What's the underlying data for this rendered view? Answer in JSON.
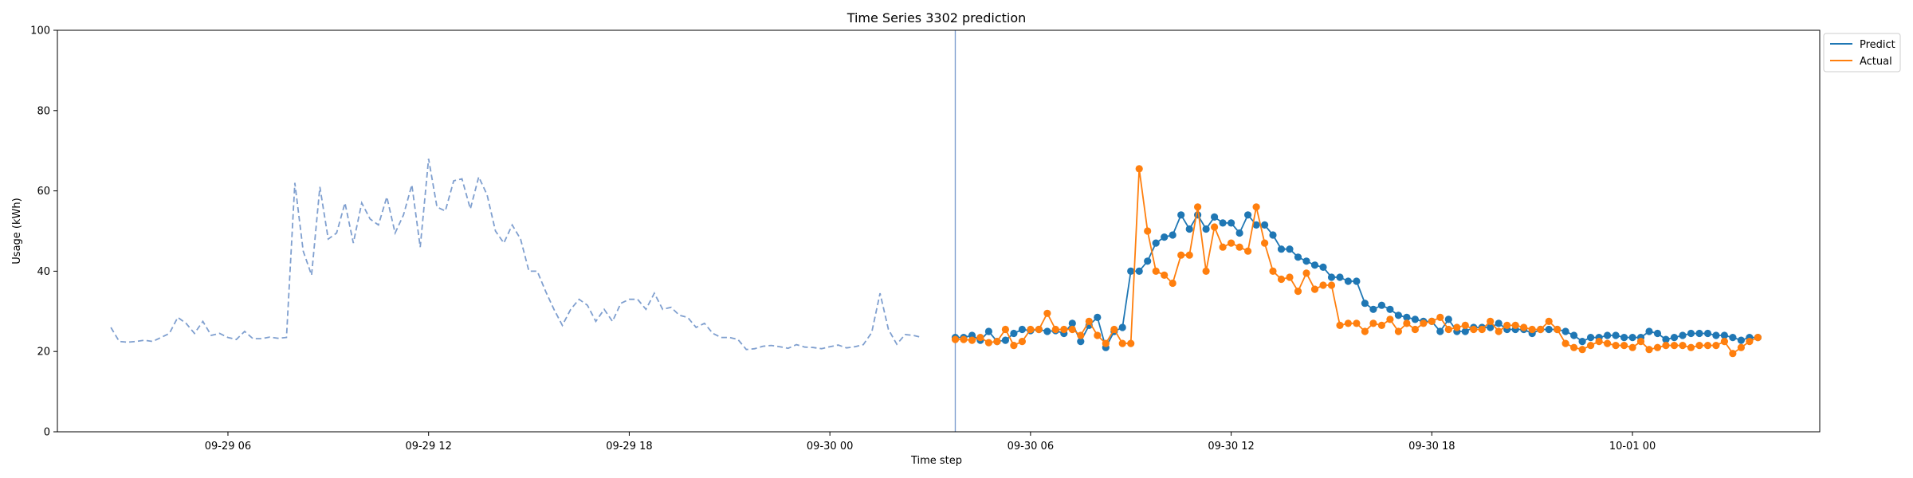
{
  "chart_data": {
    "type": "line",
    "title": "Time Series 3302 prediction",
    "xlabel": "Time step",
    "ylabel": "Usage (kWh)",
    "ylim": [
      0,
      100
    ],
    "yticks": [
      0,
      20,
      40,
      60,
      80,
      100
    ],
    "xlim": [
      "09-29 00:54",
      "10-01 05:36"
    ],
    "xticks": [
      {
        "label": "09-29 06",
        "value": "09-29 06:00"
      },
      {
        "label": "09-29 12",
        "value": "09-29 12:00"
      },
      {
        "label": "09-29 18",
        "value": "09-29 18:00"
      },
      {
        "label": "09-30 00",
        "value": "09-30 00:00"
      },
      {
        "label": "09-30 06",
        "value": "09-30 06:00"
      },
      {
        "label": "09-30 12",
        "value": "09-30 12:00"
      },
      {
        "label": "09-30 18",
        "value": "09-30 18:00"
      },
      {
        "label": "10-01 00",
        "value": "10-01 00:00"
      }
    ],
    "grid": false,
    "legend_position": "upper-right-outside",
    "forecast_start": "09-30 03:45",
    "series": [
      {
        "role": "history",
        "color": "#7f9fcf",
        "style": "dashed",
        "start": "09-29 02:30",
        "interval_minutes": 15,
        "values": [
          26,
          22.5,
          22.3,
          22.5,
          22.8,
          22.5,
          23.5,
          24.5,
          28.5,
          27,
          24.5,
          27.5,
          24,
          24.5,
          23.5,
          23,
          25,
          23.2,
          23.2,
          23.6,
          23.3,
          23.5,
          62,
          45,
          39,
          61,
          48,
          49.5,
          57,
          47,
          57,
          53,
          51.5,
          58.5,
          49.5,
          54,
          61.5,
          46,
          68,
          56,
          55,
          62.5,
          63,
          55.5,
          63.5,
          59,
          50,
          47,
          51.5,
          48,
          40,
          40,
          35,
          30.5,
          26.5,
          30.5,
          33,
          31.5,
          27.5,
          30.5,
          27.5,
          32,
          33,
          33,
          30.5,
          34.5,
          30.5,
          31,
          29,
          28.5,
          26,
          27,
          24.5,
          23.5,
          23.5,
          23,
          20.5,
          20.7,
          21.3,
          21.5,
          21.2,
          20.8,
          21.7,
          21.1,
          21,
          20.7,
          21.2,
          21.6,
          20.9,
          21.2,
          21.7,
          24.7,
          34.5,
          25.5,
          21.8,
          24.2,
          24,
          23.5
        ]
      },
      {
        "role": "prediction",
        "name": "Predict",
        "color": "#1f77b4",
        "style": "solid-markers",
        "start": "09-30 03:45",
        "interval_minutes": 15,
        "values": [
          23.5,
          23.5,
          24,
          22.8,
          25,
          22.5,
          22.8,
          24.5,
          25.5,
          25.2,
          25.5,
          25,
          25.2,
          24.5,
          27,
          22.5,
          26.5,
          28.5,
          21,
          25,
          26,
          40,
          40,
          42.5,
          47,
          48.5,
          49,
          54,
          50.5,
          54,
          50.5,
          53.5,
          52,
          52,
          49.5,
          54,
          51.5,
          51.5,
          49,
          45.5,
          45.5,
          43.5,
          42.5,
          41.5,
          41,
          38.5,
          38.5,
          37.5,
          37.5,
          32,
          30.5,
          31.5,
          30.5,
          29,
          28.5,
          28,
          27.5,
          27.5,
          25,
          28,
          25,
          25,
          26,
          26,
          26,
          27,
          25.5,
          25.5,
          25.5,
          24.5,
          25.5,
          25.5,
          25.5,
          25,
          24,
          22.5,
          23.5,
          23.5,
          24,
          24,
          23.5,
          23.5,
          23.5,
          25,
          24.5,
          23,
          23.5,
          24,
          24.5,
          24.5,
          24.5,
          24,
          24,
          23.5,
          22.8,
          23.5,
          23.5
        ]
      },
      {
        "role": "actual",
        "name": "Actual",
        "color": "#ff7f0e",
        "style": "solid-markers",
        "start": "09-30 03:45",
        "interval_minutes": 15,
        "values": [
          23,
          23,
          22.8,
          23.5,
          22.2,
          22.5,
          25.5,
          21.5,
          22.5,
          25.5,
          25.5,
          29.5,
          25.5,
          25.5,
          25.5,
          24,
          27.5,
          24,
          22,
          25.5,
          22,
          22,
          65.5,
          50,
          40,
          39,
          37,
          44,
          44,
          56,
          40,
          51,
          46,
          47,
          46,
          45,
          56,
          47,
          40,
          38,
          38.5,
          35,
          39.5,
          35.5,
          36.5,
          36.5,
          26.5,
          27,
          27,
          25,
          27,
          26.5,
          28,
          25,
          27,
          25.5,
          27,
          27.5,
          28.5,
          25.5,
          26,
          26.5,
          25.5,
          25.5,
          27.5,
          25,
          26.5,
          26.5,
          26,
          25.5,
          25.5,
          27.5,
          25.5,
          22,
          21,
          20.5,
          21.5,
          22.5,
          22,
          21.5,
          21.5,
          21,
          22.5,
          20.5,
          21,
          21.5,
          21.5,
          21.5,
          21,
          21.5,
          21.5,
          21.5,
          22.5,
          19.5,
          21,
          22.5,
          23.5
        ]
      }
    ]
  }
}
